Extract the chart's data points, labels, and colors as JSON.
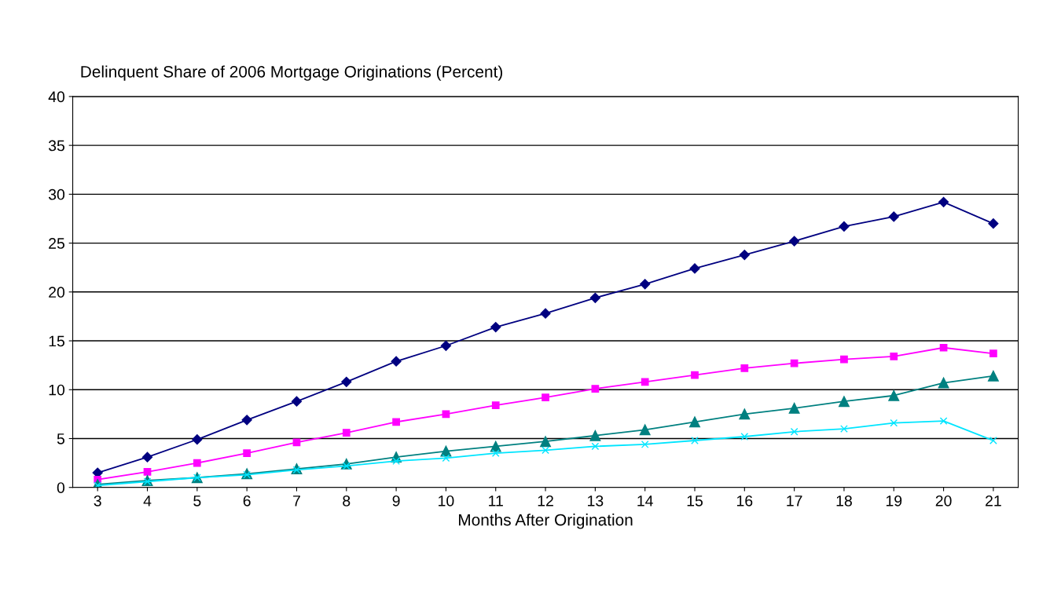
{
  "chart_data": {
    "type": "line",
    "title": "Delinquent Share of 2006 Mortgage Originations (Percent)",
    "xlabel": "Months After Origination",
    "categories": [
      "3",
      "4",
      "5",
      "6",
      "7",
      "8",
      "9",
      "10",
      "11",
      "12",
      "13",
      "14",
      "15",
      "16",
      "17",
      "18",
      "19",
      "20",
      "21"
    ],
    "ylim": [
      0,
      40
    ],
    "yticks": [
      0,
      5,
      10,
      15,
      20,
      25,
      30,
      35,
      40
    ],
    "grid": "y",
    "legend": false,
    "series": [
      {
        "color": "#000080",
        "marker": "diamond",
        "values": [
          1.5,
          3.1,
          4.9,
          6.9,
          8.8,
          10.8,
          12.9,
          14.5,
          16.4,
          17.8,
          19.4,
          20.8,
          22.4,
          23.8,
          25.2,
          26.7,
          27.7,
          29.2,
          27.0
        ]
      },
      {
        "color": "#ff00ff",
        "marker": "square",
        "values": [
          0.8,
          1.6,
          2.5,
          3.5,
          4.6,
          5.6,
          6.7,
          7.5,
          8.4,
          9.2,
          10.1,
          10.8,
          11.5,
          12.2,
          12.7,
          13.1,
          13.4,
          14.3,
          13.7
        ]
      },
      {
        "color": "#008080",
        "marker": "triangle",
        "values": [
          0.3,
          0.7,
          1.0,
          1.4,
          1.9,
          2.4,
          3.1,
          3.7,
          4.2,
          4.7,
          5.3,
          5.9,
          6.7,
          7.5,
          8.1,
          8.8,
          9.4,
          10.7,
          11.4
        ]
      },
      {
        "color": "#00e5ff",
        "marker": "cross",
        "values": [
          0.2,
          0.6,
          1.0,
          1.3,
          1.8,
          2.2,
          2.7,
          3.0,
          3.5,
          3.8,
          4.2,
          4.4,
          4.8,
          5.2,
          5.7,
          6.0,
          6.6,
          6.8,
          4.8
        ]
      }
    ]
  }
}
